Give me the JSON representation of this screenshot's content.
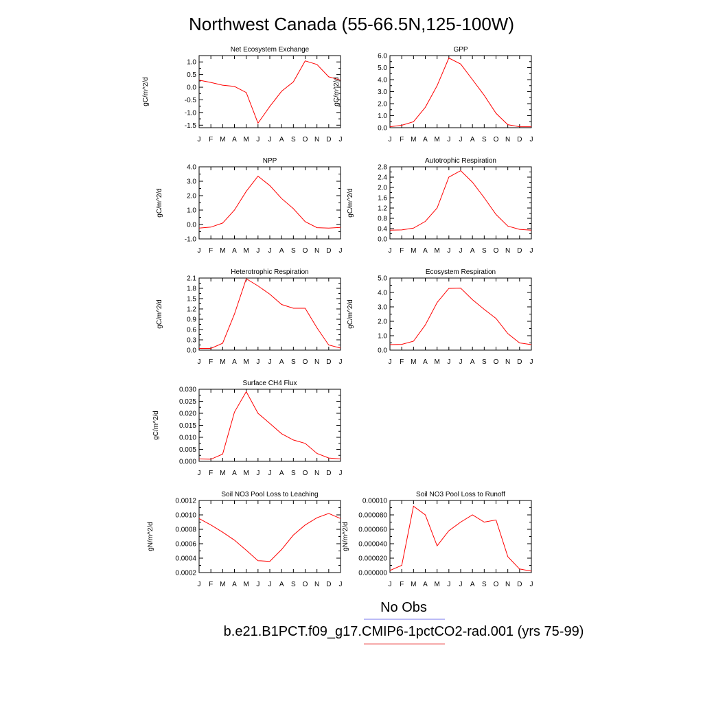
{
  "figure_title": "Northwest Canada (55-66.5N,125-100W)",
  "legend": {
    "entries": [
      {
        "label": "No Obs",
        "color": "#7777ee"
      },
      {
        "label": "b.e21.B1PCT.f09_g17.CMIP6-1pctCO2-rad.001 (yrs 75-99)",
        "color": "#ee5555"
      }
    ]
  },
  "series_color": "#ff0000",
  "chart_data": [
    {
      "type": "line",
      "title": "Net Ecosystem Exchange",
      "ylabel": "gC/m^2/d",
      "categories": [
        "J",
        "F",
        "M",
        "A",
        "M",
        "J",
        "J",
        "A",
        "S",
        "O",
        "N",
        "D",
        "J"
      ],
      "ylim": [
        -1.6,
        1.25
      ],
      "yticks": [
        1.0,
        0.5,
        0.0,
        -0.5,
        -1.0,
        -1.5
      ],
      "ytick_labels": [
        "1.0",
        "0.5",
        "0.0",
        "-0.5",
        "-1.0",
        "-1.5"
      ],
      "values": [
        0.28,
        0.19,
        0.08,
        0.03,
        -0.21,
        -1.42,
        -0.76,
        -0.16,
        0.21,
        1.04,
        0.9,
        0.41,
        0.28
      ]
    },
    {
      "type": "line",
      "title": "GPP",
      "ylabel": "gC/m^2/d",
      "categories": [
        "J",
        "F",
        "M",
        "A",
        "M",
        "J",
        "J",
        "A",
        "S",
        "O",
        "N",
        "D",
        "J"
      ],
      "ylim": [
        0.0,
        6.0
      ],
      "yticks": [
        6.0,
        5.0,
        4.0,
        3.0,
        2.0,
        1.0,
        0.0
      ],
      "ytick_labels": [
        "6.0",
        "5.0",
        "4.0",
        "3.0",
        "2.0",
        "1.0",
        "0.0"
      ],
      "values": [
        0.08,
        0.2,
        0.5,
        1.7,
        3.5,
        5.8,
        5.3,
        4.0,
        2.7,
        1.2,
        0.25,
        0.08,
        0.08
      ]
    },
    {
      "type": "line",
      "title": "NPP",
      "ylabel": "gC/m^2/d",
      "categories": [
        "J",
        "F",
        "M",
        "A",
        "M",
        "J",
        "J",
        "A",
        "S",
        "O",
        "N",
        "D",
        "J"
      ],
      "ylim": [
        -1.0,
        4.0
      ],
      "yticks": [
        4.0,
        3.0,
        2.0,
        1.0,
        0.0,
        -1.0
      ],
      "ytick_labels": [
        "4.0",
        "3.0",
        "2.0",
        "1.0",
        "0.0",
        "-1.0"
      ],
      "values": [
        -0.25,
        -0.18,
        0.1,
        1.0,
        2.3,
        3.35,
        2.7,
        1.8,
        1.1,
        0.2,
        -0.22,
        -0.25,
        -0.2
      ]
    },
    {
      "type": "line",
      "title": "Autotrophic Respiration",
      "ylabel": "gC/m^2/d",
      "categories": [
        "J",
        "F",
        "M",
        "A",
        "M",
        "J",
        "J",
        "A",
        "S",
        "O",
        "N",
        "D",
        "J"
      ],
      "ylim": [
        0.0,
        2.8
      ],
      "yticks": [
        2.8,
        2.4,
        2.0,
        1.6,
        1.2,
        0.8,
        0.4,
        0.0
      ],
      "ytick_labels": [
        "2.8",
        "2.4",
        "2.0",
        "1.6",
        "1.2",
        "0.8",
        "0.4",
        "0.0"
      ],
      "values": [
        0.34,
        0.35,
        0.42,
        0.68,
        1.2,
        2.4,
        2.65,
        2.2,
        1.6,
        0.95,
        0.5,
        0.37,
        0.34
      ]
    },
    {
      "type": "line",
      "title": "Heterotrophic Respiration",
      "ylabel": "gC/m^2/d",
      "categories": [
        "J",
        "F",
        "M",
        "A",
        "M",
        "J",
        "J",
        "A",
        "S",
        "O",
        "N",
        "D",
        "J"
      ],
      "ylim": [
        0.0,
        2.1
      ],
      "yticks": [
        2.1,
        1.8,
        1.5,
        1.2,
        0.9,
        0.6,
        0.3,
        0.0
      ],
      "ytick_labels": [
        "2.1",
        "1.8",
        "1.5",
        "1.2",
        "0.9",
        "0.6",
        "0.3",
        "0.0"
      ],
      "values": [
        0.05,
        0.05,
        0.2,
        1.05,
        2.08,
        1.87,
        1.63,
        1.33,
        1.22,
        1.22,
        0.65,
        0.15,
        0.06
      ]
    },
    {
      "type": "line",
      "title": "Ecosystem Respiration",
      "ylabel": "gC/m^2/d",
      "categories": [
        "J",
        "F",
        "M",
        "A",
        "M",
        "J",
        "J",
        "A",
        "S",
        "O",
        "N",
        "D",
        "J"
      ],
      "ylim": [
        0.0,
        5.0
      ],
      "yticks": [
        5.0,
        4.0,
        3.0,
        2.0,
        1.0,
        0.0
      ],
      "ytick_labels": [
        "5.0",
        "4.0",
        "3.0",
        "2.0",
        "1.0",
        "0.0"
      ],
      "values": [
        0.38,
        0.4,
        0.62,
        1.75,
        3.3,
        4.28,
        4.3,
        3.5,
        2.83,
        2.2,
        1.15,
        0.5,
        0.38
      ]
    },
    {
      "type": "line",
      "title": "Surface CH4 Flux",
      "ylabel": "gC/m^2/d",
      "categories": [
        "J",
        "F",
        "M",
        "A",
        "M",
        "J",
        "J",
        "A",
        "S",
        "O",
        "N",
        "D",
        "J"
      ],
      "ylim": [
        0.0,
        0.03
      ],
      "yticks": [
        0.03,
        0.025,
        0.02,
        0.015,
        0.01,
        0.005,
        0.0
      ],
      "ytick_labels": [
        "0.030",
        "0.025",
        "0.020",
        "0.015",
        "0.010",
        "0.005",
        "0.000"
      ],
      "values": [
        0.001,
        0.0009,
        0.003,
        0.0205,
        0.029,
        0.02,
        0.0158,
        0.0115,
        0.0089,
        0.0075,
        0.0033,
        0.0014,
        0.001
      ]
    },
    {
      "type": "line",
      "title": "Soil NO3 Pool Loss to Leaching",
      "ylabel": "gN/m^2/d",
      "categories": [
        "J",
        "F",
        "M",
        "A",
        "M",
        "J",
        "J",
        "A",
        "S",
        "O",
        "N",
        "D",
        "J"
      ],
      "ylim": [
        0.0002,
        0.0012
      ],
      "yticks": [
        0.0012,
        0.001,
        0.0008,
        0.0006,
        0.0004,
        0.0002
      ],
      "ytick_labels": [
        "0.0012",
        "0.0010",
        "0.0008",
        "0.0006",
        "0.0004",
        "0.0002"
      ],
      "values": [
        0.00095,
        0.00086,
        0.00076,
        0.00065,
        0.00051,
        0.000365,
        0.000355,
        0.00052,
        0.00072,
        0.00086,
        0.00096,
        0.00102,
        0.00095
      ]
    },
    {
      "type": "line",
      "title": "Soil NO3 Pool Loss to Runoff",
      "ylabel": "gN/m^2/d",
      "categories": [
        "J",
        "F",
        "M",
        "A",
        "M",
        "J",
        "J",
        "A",
        "S",
        "O",
        "N",
        "D",
        "J"
      ],
      "ylim": [
        0.0,
        0.0001
      ],
      "yticks": [
        0.0001,
        8e-05,
        6e-05,
        4e-05,
        2e-05,
        0.0
      ],
      "ytick_labels": [
        "0.00010",
        "0.000080",
        "0.000060",
        "0.000040",
        "0.000020",
        "0.000000"
      ],
      "values": [
        3e-06,
        1e-05,
        9.2e-05,
        8e-05,
        3.7e-05,
        5.8e-05,
        7e-05,
        8e-05,
        7e-05,
        7.3e-05,
        2.2e-05,
        5e-06,
        2e-06
      ]
    }
  ]
}
